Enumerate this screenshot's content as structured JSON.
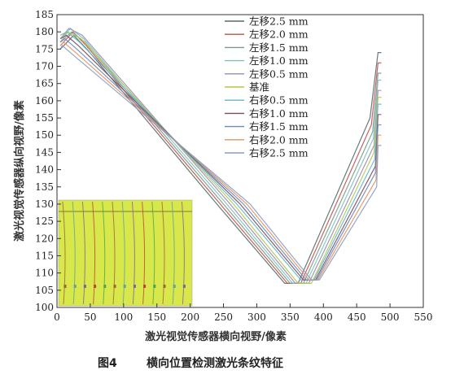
{
  "chart_data": {
    "type": "line",
    "xlabel": "激光视觉传感器横向视野/像素",
    "ylabel": "激光视觉传感器纵向视野/像素",
    "caption_label": "图4",
    "caption_text": "横向位置检测激光条纹特征",
    "xlim": [
      0,
      550
    ],
    "ylim": [
      100,
      185
    ],
    "xticks": [
      0,
      50,
      100,
      150,
      200,
      250,
      300,
      350,
      400,
      450,
      500,
      550
    ],
    "yticks": [
      100,
      105,
      110,
      115,
      120,
      125,
      130,
      135,
      140,
      145,
      150,
      155,
      160,
      165,
      170,
      175,
      180,
      185
    ],
    "series": [
      {
        "name": "左移2.5 mm",
        "color": "#556b6b",
        "points": [
          [
            5,
            175
          ],
          [
            25,
            179
          ],
          [
            45,
            175
          ],
          [
            240,
            130
          ],
          [
            342,
            107
          ],
          [
            362,
            107
          ],
          [
            470,
            155
          ],
          [
            482,
            174
          ],
          [
            487,
            174
          ]
        ]
      },
      {
        "name": "左移2.0 mm",
        "color": "#c0504d",
        "points": [
          [
            5,
            176
          ],
          [
            24,
            180
          ],
          [
            44,
            176
          ],
          [
            245,
            130
          ],
          [
            346,
            107
          ],
          [
            366,
            107
          ],
          [
            472,
            153
          ],
          [
            482,
            171
          ],
          [
            487,
            171
          ]
        ]
      },
      {
        "name": "左移1.5 mm",
        "color": "#7a9a8a",
        "points": [
          [
            5,
            177
          ],
          [
            22,
            180
          ],
          [
            42,
            177
          ],
          [
            250,
            130
          ],
          [
            350,
            107
          ],
          [
            370,
            107
          ],
          [
            474,
            151
          ],
          [
            482,
            168
          ],
          [
            487,
            168
          ]
        ]
      },
      {
        "name": "左移1.0 mm",
        "color": "#7fbfbf",
        "points": [
          [
            5,
            177
          ],
          [
            20,
            181
          ],
          [
            40,
            178
          ],
          [
            255,
            130
          ],
          [
            354,
            107
          ],
          [
            374,
            107
          ],
          [
            475,
            149
          ],
          [
            482,
            166
          ],
          [
            487,
            166
          ]
        ]
      },
      {
        "name": "左移0.5 mm",
        "color": "#9a8ab0",
        "points": [
          [
            5,
            178
          ],
          [
            18,
            181
          ],
          [
            38,
            179
          ],
          [
            260,
            130
          ],
          [
            358,
            107
          ],
          [
            378,
            107
          ],
          [
            476,
            147
          ],
          [
            482,
            163
          ],
          [
            487,
            163
          ]
        ]
      },
      {
        "name": "基准",
        "color": "#b0c850",
        "points": [
          [
            5,
            178
          ],
          [
            16,
            180
          ],
          [
            36,
            178
          ],
          [
            265,
            130
          ],
          [
            362,
            107
          ],
          [
            382,
            107
          ],
          [
            476,
            145
          ],
          [
            482,
            161
          ],
          [
            487,
            161
          ]
        ]
      },
      {
        "name": "右移0.5 mm",
        "color": "#5fb8c8",
        "points": [
          [
            5,
            179
          ],
          [
            15,
            180
          ],
          [
            34,
            177
          ],
          [
            270,
            130
          ],
          [
            366,
            108
          ],
          [
            386,
            108
          ],
          [
            477,
            143
          ],
          [
            482,
            159
          ],
          [
            487,
            159
          ]
        ]
      },
      {
        "name": "右移1.0 mm",
        "color": "#7a4a6a",
        "points": [
          [
            5,
            178
          ],
          [
            14,
            179
          ],
          [
            32,
            176
          ],
          [
            275,
            130
          ],
          [
            370,
            108
          ],
          [
            388,
            108
          ],
          [
            478,
            141
          ],
          [
            482,
            156
          ],
          [
            487,
            156
          ]
        ]
      },
      {
        "name": "右移1.5 mm",
        "color": "#6a8ab8",
        "points": [
          [
            5,
            177
          ],
          [
            12,
            178
          ],
          [
            30,
            175
          ],
          [
            280,
            130
          ],
          [
            374,
            108
          ],
          [
            390,
            108
          ],
          [
            478,
            139
          ],
          [
            482,
            153
          ],
          [
            487,
            153
          ]
        ]
      },
      {
        "name": "右移2.0 mm",
        "color": "#e0955a",
        "points": [
          [
            5,
            176
          ],
          [
            10,
            177
          ],
          [
            28,
            174
          ],
          [
            285,
            130
          ],
          [
            378,
            108
          ],
          [
            392,
            108
          ],
          [
            479,
            137
          ],
          [
            482,
            150
          ],
          [
            487,
            150
          ]
        ]
      },
      {
        "name": "右移2.5 mm",
        "color": "#8a9ac8",
        "points": [
          [
            5,
            175
          ],
          [
            8,
            176
          ],
          [
            26,
            173
          ],
          [
            290,
            130
          ],
          [
            382,
            108
          ],
          [
            394,
            108
          ],
          [
            480,
            135
          ],
          [
            482,
            147
          ],
          [
            487,
            147
          ]
        ]
      }
    ],
    "inset": {
      "background": "#d8e84a",
      "stripe_colors": [
        "#a06040",
        "#5fa0a0",
        "#8060a0",
        "#c04040",
        "#50a050"
      ]
    },
    "grid": false,
    "legend_position": "top-right"
  }
}
